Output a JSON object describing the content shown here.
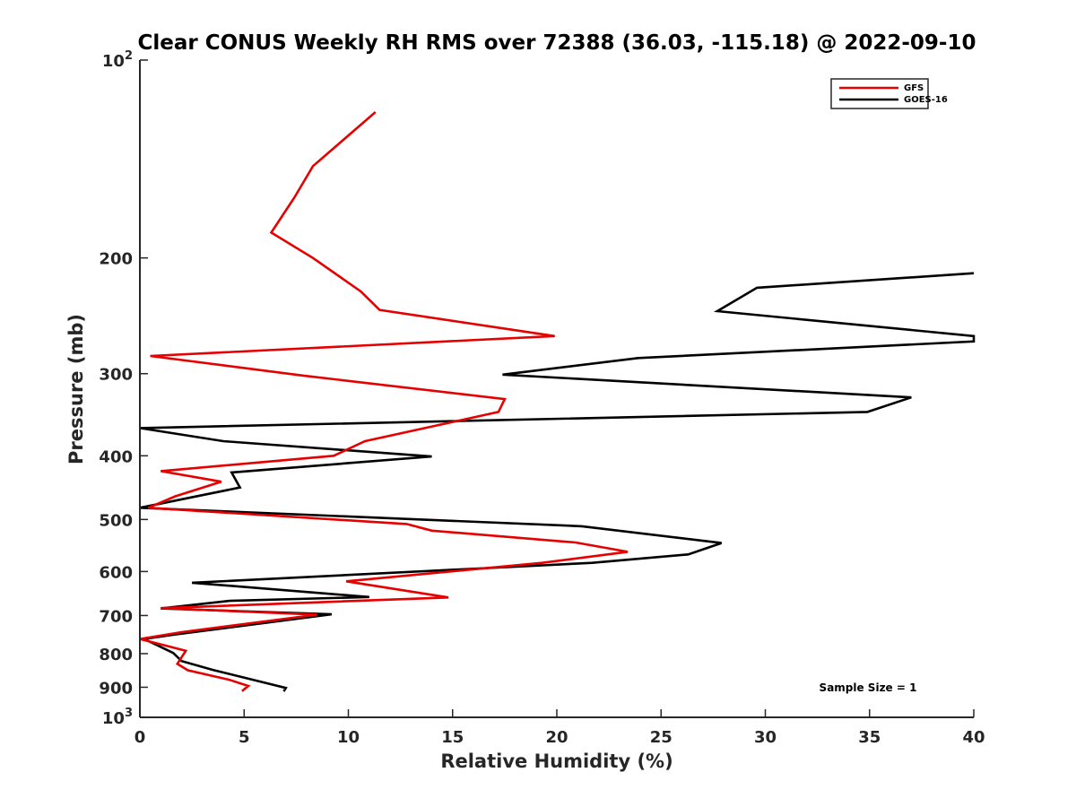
{
  "chart_data": {
    "type": "line",
    "title": "Clear CONUS Weekly RH RMS over 72388 (36.03, -115.18) @ 2022-09-10",
    "xlabel": "Relative Humidity (%)",
    "ylabel": "Pressure (mb)",
    "xlim": [
      0,
      40
    ],
    "ylim": [
      100,
      1000
    ],
    "y_scale": "log",
    "y_reversed": true,
    "grid": false,
    "legend_position": "top-right",
    "x_ticks": [
      "0",
      "5",
      "10",
      "15",
      "20",
      "25",
      "30",
      "35",
      "40"
    ],
    "y_ticks": [
      {
        "value": 100,
        "base": "10",
        "exp": "2"
      },
      {
        "value": 200,
        "label": "200"
      },
      {
        "value": 300,
        "label": "300"
      },
      {
        "value": 400,
        "label": "400"
      },
      {
        "value": 500,
        "label": "500"
      },
      {
        "value": 600,
        "label": "600"
      },
      {
        "value": 700,
        "label": "700"
      },
      {
        "value": 800,
        "label": "800"
      },
      {
        "value": 900,
        "label": "900"
      },
      {
        "value": 1000,
        "base": "10",
        "exp": "3"
      }
    ],
    "annotation": "Sample Size = 1",
    "series": [
      {
        "name": "GFS",
        "color": "#e60000",
        "points": [
          [
            11.3,
            120
          ],
          [
            8.3,
            145
          ],
          [
            7.4,
            162
          ],
          [
            6.3,
            183
          ],
          [
            8.3,
            200
          ],
          [
            10.6,
            225
          ],
          [
            11.5,
            240
          ],
          [
            19.9,
            263
          ],
          [
            0.5,
            282
          ],
          [
            7.8,
            302
          ],
          [
            17.5,
            328
          ],
          [
            17.2,
            343
          ],
          [
            10.8,
            380
          ],
          [
            9.3,
            400
          ],
          [
            1.0,
            422
          ],
          [
            3.9,
            438
          ],
          [
            1.7,
            461
          ],
          [
            0.4,
            480
          ],
          [
            12.8,
            508
          ],
          [
            14.0,
            520
          ],
          [
            20.9,
            542
          ],
          [
            23.4,
            560
          ],
          [
            19.3,
            582
          ],
          [
            9.9,
            621
          ],
          [
            14.8,
            657
          ],
          [
            1.0,
            682
          ],
          [
            8.5,
            698
          ],
          [
            2.0,
            742
          ],
          [
            0.0,
            760
          ],
          [
            2.2,
            792
          ],
          [
            1.8,
            829
          ],
          [
            2.3,
            848
          ],
          [
            4.3,
            877
          ],
          [
            5.2,
            896
          ],
          [
            4.9,
            912
          ]
        ]
      },
      {
        "name": "GOES-16",
        "color": "#000000",
        "points": [
          [
            40.0,
            211
          ],
          [
            29.6,
            222
          ],
          [
            27.7,
            241
          ],
          [
            40.0,
            263
          ],
          [
            40.0,
            268
          ],
          [
            23.9,
            284
          ],
          [
            17.4,
            301
          ],
          [
            37.0,
            326
          ],
          [
            34.9,
            343
          ],
          [
            0.0,
            363
          ],
          [
            4.0,
            380
          ],
          [
            14.0,
            401
          ],
          [
            4.4,
            424
          ],
          [
            4.8,
            447
          ],
          [
            0.0,
            480
          ],
          [
            21.2,
            512
          ],
          [
            27.9,
            543
          ],
          [
            26.3,
            565
          ],
          [
            21.7,
            582
          ],
          [
            2.5,
            624
          ],
          [
            11.0,
            656
          ],
          [
            4.3,
            665
          ],
          [
            1.0,
            683
          ],
          [
            9.2,
            697
          ],
          [
            1.7,
            748
          ],
          [
            0.2,
            760
          ],
          [
            1.6,
            798
          ],
          [
            2.0,
            821
          ],
          [
            3.5,
            847
          ],
          [
            7.0,
            902
          ],
          [
            6.9,
            913
          ]
        ]
      }
    ]
  }
}
